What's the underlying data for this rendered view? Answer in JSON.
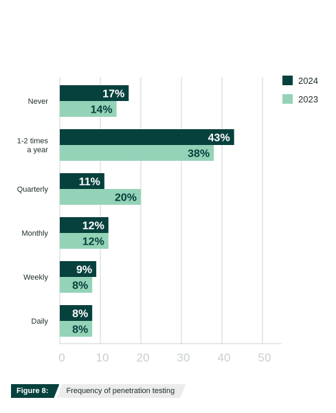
{
  "chart_data": {
    "type": "bar",
    "orientation": "horizontal",
    "categories": [
      "Never",
      "1-2 times a year",
      "Quarterly",
      "Monthly",
      "Weekly",
      "Daily"
    ],
    "category_lines": [
      [
        "Never"
      ],
      [
        "1-2 times",
        "a year"
      ],
      [
        "Quarterly"
      ],
      [
        "Monthly"
      ],
      [
        "Weekly"
      ],
      [
        "Daily"
      ]
    ],
    "series": [
      {
        "name": "2024",
        "values": [
          17,
          43,
          11,
          12,
          9,
          8
        ],
        "color": "#07413d",
        "label_color": "#ffffff"
      },
      {
        "name": "2023",
        "values": [
          14,
          38,
          20,
          12,
          8,
          8
        ],
        "color": "#94d3b7",
        "label_color": "#07413d"
      }
    ],
    "value_suffix": "%",
    "xlim": [
      0,
      50
    ],
    "xticks": [
      0,
      10,
      20,
      30,
      40,
      50
    ],
    "grid": true,
    "legend_position": "top-right",
    "xlabel": "",
    "ylabel": ""
  },
  "caption": {
    "tag": "Figure 8:",
    "text": "Frequency of penetration testing"
  },
  "colors": {
    "dark": "#07413d",
    "light": "#94d3b7",
    "grid": "#cfd3d2",
    "tick": "#c9cfcd"
  }
}
